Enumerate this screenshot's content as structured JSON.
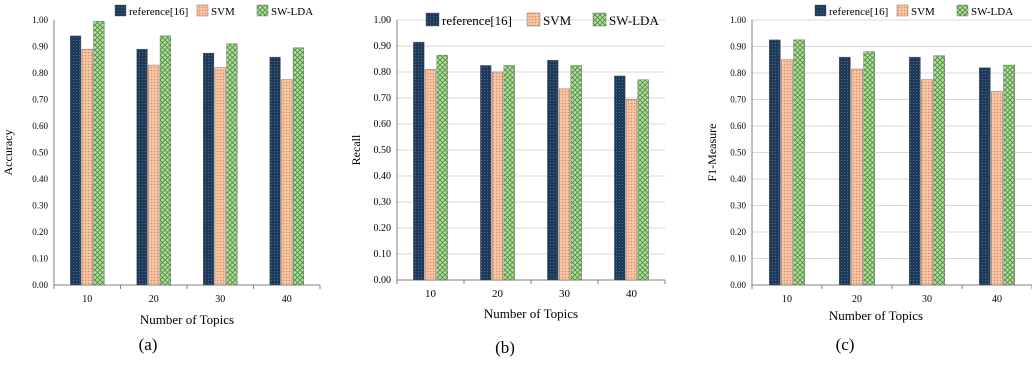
{
  "colors": {
    "reference16": "#1e3858",
    "svm": "#f2a778",
    "swlda": "#8dc477",
    "grid": "#d9d9d9",
    "axis": "#808080"
  },
  "chart_data": [
    {
      "type": "bar",
      "panel": "(a)",
      "categories": [
        "10",
        "20",
        "30",
        "40"
      ],
      "series": [
        {
          "name": "reference[16]",
          "values": [
            0.94,
            0.89,
            0.875,
            0.86
          ]
        },
        {
          "name": "SVM",
          "values": [
            0.89,
            0.83,
            0.82,
            0.775
          ]
        },
        {
          "name": "SW-LDA",
          "values": [
            0.995,
            0.94,
            0.91,
            0.895
          ]
        }
      ],
      "xlabel": "Number of Topics",
      "ylabel": "Accuracy",
      "ylim": [
        0,
        1
      ],
      "yticks": [
        "0.00",
        "0.10",
        "0.20",
        "0.30",
        "0.40",
        "0.50",
        "0.60",
        "0.70",
        "0.80",
        "0.90",
        "1.00"
      ],
      "legend": "top-right",
      "grid": false
    },
    {
      "type": "bar",
      "panel": "(b)",
      "categories": [
        "10",
        "20",
        "30",
        "40"
      ],
      "series": [
        {
          "name": "reference[16]",
          "values": [
            0.915,
            0.825,
            0.845,
            0.785
          ]
        },
        {
          "name": "SVM",
          "values": [
            0.81,
            0.8,
            0.735,
            0.695
          ]
        },
        {
          "name": "SW-LDA",
          "values": [
            0.865,
            0.825,
            0.825,
            0.77
          ]
        }
      ],
      "xlabel": "Number of Topics",
      "ylabel": "Recall",
      "ylim": [
        0,
        1
      ],
      "yticks": [
        "0.00",
        "0.10",
        "0.20",
        "0.30",
        "0.40",
        "0.50",
        "0.60",
        "0.70",
        "0.80",
        "0.90",
        "1.00"
      ],
      "legend": "top",
      "grid": true
    },
    {
      "type": "bar",
      "panel": "(c)",
      "categories": [
        "10",
        "20",
        "30",
        "40"
      ],
      "series": [
        {
          "name": "reference[16]",
          "values": [
            0.925,
            0.86,
            0.86,
            0.82
          ]
        },
        {
          "name": "SVM",
          "values": [
            0.85,
            0.815,
            0.775,
            0.73
          ]
        },
        {
          "name": "SW-LDA",
          "values": [
            0.925,
            0.88,
            0.865,
            0.83
          ]
        }
      ],
      "xlabel": "Number of Topics",
      "ylabel": "F1-Measure",
      "ylim": [
        0,
        1
      ],
      "yticks": [
        "0.00",
        "0.10",
        "0.20",
        "0.30",
        "0.40",
        "0.50",
        "0.60",
        "0.70",
        "0.80",
        "0.90",
        "1.00"
      ],
      "legend": "top-right",
      "grid": true
    }
  ]
}
